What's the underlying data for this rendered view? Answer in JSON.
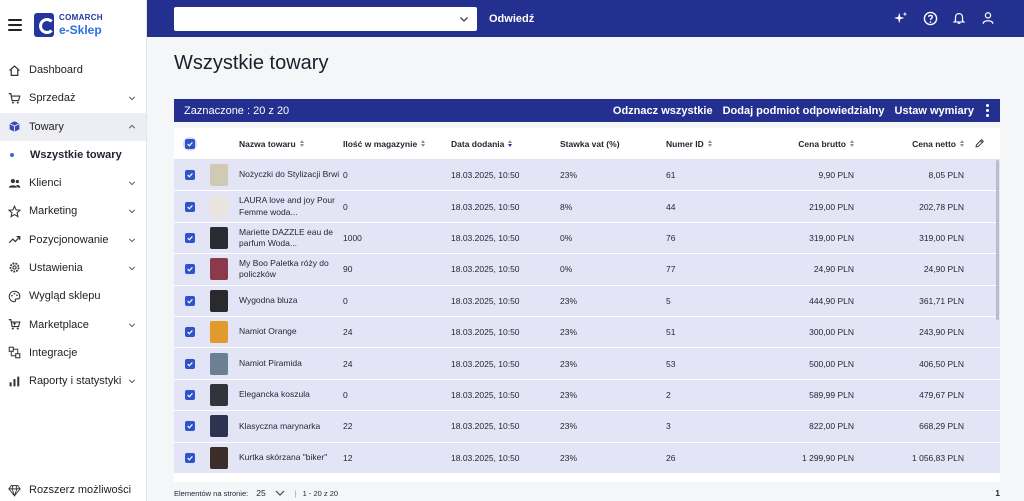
{
  "brand": {
    "company": "COMARCH",
    "product": "e-Sklep"
  },
  "sidebar": {
    "items": [
      {
        "label": "Dashboard",
        "icon": "home-icon",
        "has_chevron": false
      },
      {
        "label": "Sprzedaż",
        "icon": "cart-icon",
        "has_chevron": true
      },
      {
        "label": "Towary",
        "icon": "box-icon",
        "has_chevron": true,
        "expanded": true
      },
      {
        "label": "Klienci",
        "icon": "users-icon",
        "has_chevron": true
      },
      {
        "label": "Marketing",
        "icon": "star-icon",
        "has_chevron": true
      },
      {
        "label": "Pozycjonowanie",
        "icon": "trend-icon",
        "has_chevron": true
      },
      {
        "label": "Ustawienia",
        "icon": "gear-icon",
        "has_chevron": true
      },
      {
        "label": "Wygląd sklepu",
        "icon": "palette-icon",
        "has_chevron": false
      },
      {
        "label": "Marketplace",
        "icon": "marketplace-cart-icon",
        "has_chevron": true
      },
      {
        "label": "Integracje",
        "icon": "integrations-icon",
        "has_chevron": false
      },
      {
        "label": "Raporty i statystyki",
        "icon": "chart-icon",
        "has_chevron": true
      }
    ],
    "subitem": "Wszystkie towary",
    "bottom": "Rozszerz możliwości"
  },
  "topbar": {
    "select_value": "",
    "visit_label": "Odwiedź"
  },
  "page": {
    "title": "Wszystkie towary"
  },
  "toolbar": {
    "selection": "Zaznaczone : 20 z 20",
    "unselect_all": "Odznacz wszystkie",
    "add_responsible": "Dodaj podmiot odpowiedzialny",
    "set_dimensions": "Ustaw wymiary"
  },
  "table": {
    "headers": {
      "name": "Nazwa towaru",
      "qty": "Ilość w magazynie",
      "date": "Data dodania",
      "vat": "Stawka vat (%)",
      "id": "Numer ID",
      "brutto": "Cena brutto",
      "netto": "Cena netto"
    },
    "rows": [
      {
        "name": "Nożyczki do Stylizacji Brwi",
        "qty": "0",
        "date": "18.03.2025, 10:50",
        "vat": "23%",
        "id": "61",
        "brutto": "9,90 PLN",
        "netto": "8,05 PLN",
        "thumb": "#cfc9b5"
      },
      {
        "name": "LAURA love and joy Pour Femme woda...",
        "qty": "0",
        "date": "18.03.2025, 10:50",
        "vat": "8%",
        "id": "44",
        "brutto": "219,00 PLN",
        "netto": "202,78 PLN",
        "thumb": "#e9e4dd"
      },
      {
        "name": "Mariette DAZZLE eau de parfum Woda...",
        "qty": "1000",
        "date": "18.03.2025, 10:50",
        "vat": "0%",
        "id": "76",
        "brutto": "319,00 PLN",
        "netto": "319,00 PLN",
        "thumb": "#2b2b33"
      },
      {
        "name": "My Boo Paletka róży do policzków",
        "qty": "90",
        "date": "18.03.2025, 10:50",
        "vat": "0%",
        "id": "77",
        "brutto": "24,90 PLN",
        "netto": "24,90 PLN",
        "thumb": "#8a3a4a"
      },
      {
        "name": "Wygodna bluza",
        "qty": "0",
        "date": "18.03.2025, 10:50",
        "vat": "23%",
        "id": "5",
        "brutto": "444,90 PLN",
        "netto": "361,71 PLN",
        "thumb": "#2a2a2e"
      },
      {
        "name": "Namiot Orange",
        "qty": "24",
        "date": "18.03.2025, 10:50",
        "vat": "23%",
        "id": "51",
        "brutto": "300,00 PLN",
        "netto": "243,90 PLN",
        "thumb": "#e39a2d"
      },
      {
        "name": "Namiot Piramida",
        "qty": "24",
        "date": "18.03.2025, 10:50",
        "vat": "23%",
        "id": "53",
        "brutto": "500,00 PLN",
        "netto": "406,50 PLN",
        "thumb": "#6c7f93"
      },
      {
        "name": "Elegancka koszula",
        "qty": "0",
        "date": "18.03.2025, 10:50",
        "vat": "23%",
        "id": "2",
        "brutto": "589,99 PLN",
        "netto": "479,67 PLN",
        "thumb": "#33343b"
      },
      {
        "name": "Klasyczna marynarka",
        "qty": "22",
        "date": "18.03.2025, 10:50",
        "vat": "23%",
        "id": "3",
        "brutto": "822,00 PLN",
        "netto": "668,29 PLN",
        "thumb": "#2e3450"
      },
      {
        "name": "Kurtka skórzana \"biker\"",
        "qty": "12",
        "date": "18.03.2025, 10:50",
        "vat": "23%",
        "id": "26",
        "brutto": "1 299,90 PLN",
        "netto": "1 056,83 PLN",
        "thumb": "#3b2e28"
      }
    ]
  },
  "footer": {
    "per_page_label": "Elementów na stronie:",
    "per_page": "25",
    "range": "1 - 20 z 20",
    "page": "1"
  },
  "colors": {
    "primary": "#24308f",
    "accent": "#2d55c9",
    "row_selected": "#e3e5f7"
  }
}
